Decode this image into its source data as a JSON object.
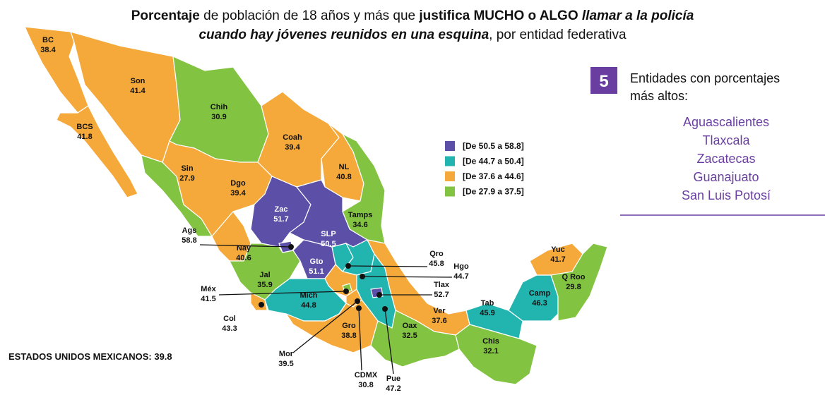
{
  "title": {
    "line1": [
      "Porcentaje",
      " de población de 18 años y más que ",
      "justifica MUCHO o ALGO",
      " llamar a la policía"
    ],
    "line2": [
      "cuando hay jóvenes reunidos en una esquina",
      ", por entidad federativa"
    ]
  },
  "legend": [
    {
      "label": "[De 50.5 a 58.8]",
      "min": 50.5,
      "max": 58.8,
      "color": "#5b4fa8"
    },
    {
      "label": "[De 44.7 a 50.4]",
      "min": 44.7,
      "max": 50.4,
      "color": "#22b5b0"
    },
    {
      "label": "[De 37.6 a 44.6]",
      "min": 37.6,
      "max": 44.6,
      "color": "#f5a93a"
    },
    {
      "label": "[De 27.9 a 37.5]",
      "min": 27.9,
      "max": 37.5,
      "color": "#82c341"
    }
  ],
  "states": [
    {
      "name": "BC",
      "value": 38.4
    },
    {
      "name": "BCS",
      "value": 41.8
    },
    {
      "name": "Son",
      "value": 41.4
    },
    {
      "name": "Chih",
      "value": 30.9
    },
    {
      "name": "Coah",
      "value": 39.4
    },
    {
      "name": "NL",
      "value": 40.8
    },
    {
      "name": "Tamps",
      "value": 34.6
    },
    {
      "name": "Sin",
      "value": 27.9
    },
    {
      "name": "Dgo",
      "value": 39.4
    },
    {
      "name": "Zac",
      "value": 51.7
    },
    {
      "name": "SLP",
      "value": 50.5
    },
    {
      "name": "Nay",
      "value": 40.6
    },
    {
      "name": "Jal",
      "value": 35.9
    },
    {
      "name": "Col",
      "value": 43.3
    },
    {
      "name": "Gto",
      "value": 51.1
    },
    {
      "name": "Qro",
      "value": 45.8
    },
    {
      "name": "Hgo",
      "value": 44.7
    },
    {
      "name": "Méx",
      "value": 41.5
    },
    {
      "name": "Mich",
      "value": 44.8
    },
    {
      "name": "Gro",
      "value": 38.8
    },
    {
      "name": "Pue",
      "value": 47.2
    },
    {
      "name": "Ver",
      "value": 37.6
    },
    {
      "name": "Oax",
      "value": 32.5
    },
    {
      "name": "Chis",
      "value": 32.1
    },
    {
      "name": "Tab",
      "value": 45.9
    },
    {
      "name": "Camp",
      "value": 46.3
    },
    {
      "name": "Yuc",
      "value": 41.7
    },
    {
      "name": "Q Roo",
      "value": 29.8
    },
    {
      "name": "Ags",
      "value": 58.8
    },
    {
      "name": "CDMX",
      "value": 30.8
    },
    {
      "name": "Mor",
      "value": 39.5
    },
    {
      "name": "Tlax",
      "value": 52.7
    }
  ],
  "national": {
    "label": "ESTADOS UNIDOS MEXICANOS:",
    "value": 39.8
  },
  "top": {
    "count": 5,
    "heading": [
      "Entidades con porcentajes",
      "más altos:"
    ],
    "names": [
      "Aguascalientes",
      "Tlaxcala",
      "Zacatecas",
      "Guanajuato",
      "San Luis Potosí"
    ]
  }
}
